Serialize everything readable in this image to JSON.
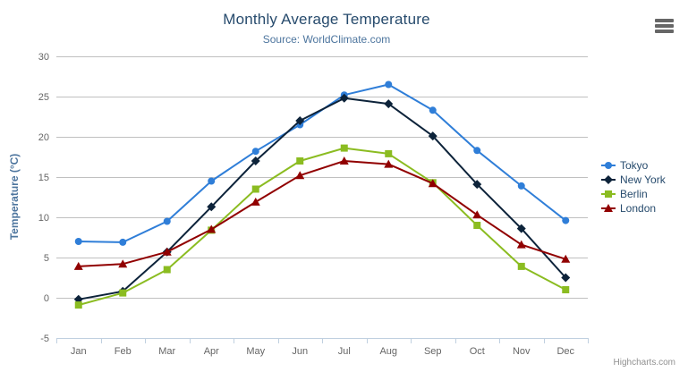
{
  "chart_data": {
    "type": "line",
    "title": "Monthly Average Temperature",
    "subtitle": "Source: WorldClimate.com",
    "ylabel": "Temperature (°C)",
    "xlabel": "",
    "categories": [
      "Jan",
      "Feb",
      "Mar",
      "Apr",
      "May",
      "Jun",
      "Jul",
      "Aug",
      "Sep",
      "Oct",
      "Nov",
      "Dec"
    ],
    "ylim": [
      -5,
      30
    ],
    "yticks": [
      -5,
      0,
      5,
      10,
      15,
      20,
      25,
      30
    ],
    "grid": true,
    "legend_position": "right",
    "series": [
      {
        "name": "Tokyo",
        "marker": "circle",
        "color": "#2f7ed8",
        "values": [
          7.0,
          6.9,
          9.5,
          14.5,
          18.2,
          21.5,
          25.2,
          26.5,
          23.3,
          18.3,
          13.9,
          9.6
        ]
      },
      {
        "name": "New York",
        "marker": "diamond",
        "color": "#0d233a",
        "values": [
          -0.2,
          0.8,
          5.7,
          11.3,
          17.0,
          22.0,
          24.8,
          24.1,
          20.1,
          14.1,
          8.6,
          2.5
        ]
      },
      {
        "name": "Berlin",
        "marker": "square",
        "color": "#8bbc21",
        "values": [
          -0.9,
          0.6,
          3.5,
          8.4,
          13.5,
          17.0,
          18.6,
          17.9,
          14.3,
          9.0,
          3.9,
          1.0
        ]
      },
      {
        "name": "London",
        "marker": "triangle",
        "color": "#910000",
        "values": [
          3.9,
          4.2,
          5.7,
          8.5,
          11.9,
          15.2,
          17.0,
          16.6,
          14.2,
          10.3,
          6.6,
          4.8
        ]
      }
    ],
    "colors": {
      "title": "#274b6d",
      "subtitle": "#4d759e",
      "axis_title": "#4d759e",
      "tick_label": "#666666",
      "grid": "#c0c0c0",
      "axis_line": "#c0d0e0",
      "legend_text": "#274b6d",
      "credits": "#909090",
      "menu_icon": "#666666"
    }
  },
  "credits": {
    "label": "Highcharts.com"
  }
}
